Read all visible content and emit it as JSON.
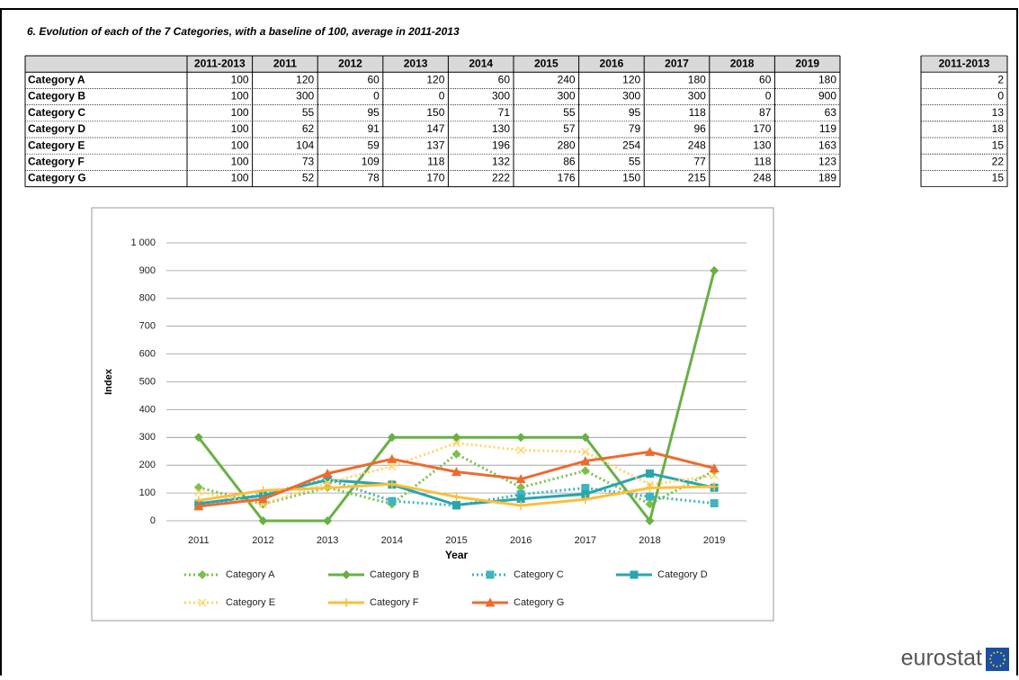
{
  "title": "6. Evolution of each of the 7 Categories, with a baseline of 100, average in 2011-2013",
  "table": {
    "columns": [
      "2011-2013",
      "2011",
      "2012",
      "2013",
      "2014",
      "2015",
      "2016",
      "2017",
      "2018",
      "2019"
    ],
    "rows": [
      {
        "label": "Category A",
        "values": [
          100,
          120,
          60,
          120,
          60,
          240,
          120,
          180,
          60,
          180
        ]
      },
      {
        "label": "Category B",
        "values": [
          100,
          300,
          0,
          0,
          300,
          300,
          300,
          300,
          0,
          900
        ]
      },
      {
        "label": "Category C",
        "values": [
          100,
          55,
          95,
          150,
          71,
          55,
          95,
          118,
          87,
          63
        ]
      },
      {
        "label": "Category D",
        "values": [
          100,
          62,
          91,
          147,
          130,
          57,
          79,
          96,
          170,
          119
        ]
      },
      {
        "label": "Category E",
        "values": [
          100,
          104,
          59,
          137,
          196,
          280,
          254,
          248,
          130,
          163
        ]
      },
      {
        "label": "Category F",
        "values": [
          100,
          73,
          109,
          118,
          132,
          86,
          55,
          77,
          118,
          123
        ]
      },
      {
        "label": "Category G",
        "values": [
          100,
          52,
          78,
          170,
          222,
          176,
          150,
          215,
          248,
          189
        ]
      }
    ]
  },
  "side_table": {
    "column": "2011-2013",
    "values": [
      2,
      0,
      13,
      18,
      15,
      22,
      15
    ]
  },
  "chart_data": {
    "type": "line",
    "xlabel": "Year",
    "ylabel": "Index",
    "categories": [
      "2011",
      "2012",
      "2013",
      "2014",
      "2015",
      "2016",
      "2017",
      "2018",
      "2019"
    ],
    "ylim": [
      0,
      1000
    ],
    "yticks": [
      0,
      100,
      200,
      300,
      400,
      500,
      600,
      700,
      800,
      900,
      {
        "value": 1000,
        "label": "1 000"
      }
    ],
    "grid": true,
    "series": [
      {
        "name": "Category A",
        "color": "#7cc04b",
        "dash": "dotted",
        "marker": "diamond",
        "values": [
          120,
          60,
          120,
          60,
          240,
          120,
          180,
          60,
          180
        ]
      },
      {
        "name": "Category B",
        "color": "#68b044",
        "dash": "solid",
        "marker": "diamond",
        "values": [
          300,
          0,
          0,
          300,
          300,
          300,
          300,
          0,
          900
        ]
      },
      {
        "name": "Category C",
        "color": "#3fb4bf",
        "dash": "dotted",
        "marker": "square",
        "values": [
          55,
          95,
          150,
          71,
          55,
          95,
          118,
          87,
          63
        ]
      },
      {
        "name": "Category D",
        "color": "#2aa5ad",
        "dash": "solid",
        "marker": "square",
        "values": [
          62,
          91,
          147,
          130,
          57,
          79,
          96,
          170,
          119
        ]
      },
      {
        "name": "Category E",
        "color": "#fcd46a",
        "dash": "dotted",
        "marker": "x",
        "values": [
          104,
          59,
          137,
          196,
          280,
          254,
          248,
          130,
          163
        ]
      },
      {
        "name": "Category F",
        "color": "#fbbf3a",
        "dash": "solid",
        "marker": "plus",
        "values": [
          73,
          109,
          118,
          132,
          86,
          55,
          77,
          118,
          123
        ]
      },
      {
        "name": "Category G",
        "color": "#ed6b2f",
        "dash": "solid",
        "marker": "triangle",
        "values": [
          52,
          78,
          170,
          222,
          176,
          150,
          215,
          248,
          189
        ]
      }
    ]
  },
  "logo": "eurostat"
}
